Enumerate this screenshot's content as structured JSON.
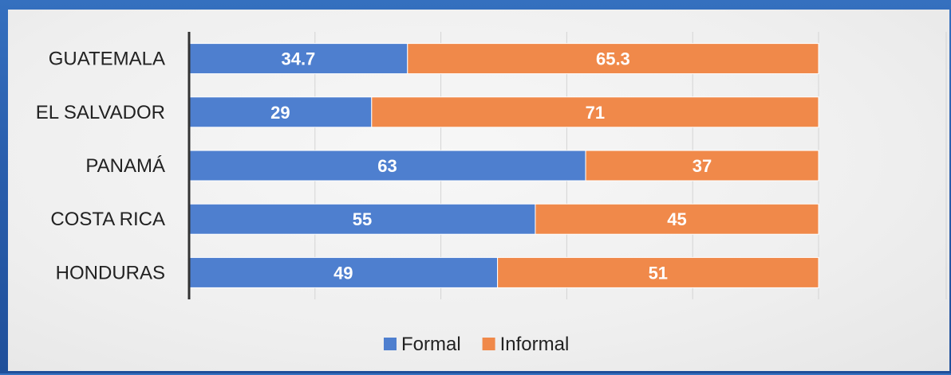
{
  "chart_data": {
    "type": "bar",
    "orientation": "horizontal",
    "stacked": true,
    "categories": [
      "GUATEMALA",
      "EL SALVADOR",
      "PANAMÁ",
      "COSTA RICA",
      "HONDURAS"
    ],
    "series": [
      {
        "name": "Formal",
        "values": [
          34.7,
          29,
          63,
          55,
          49
        ],
        "labels": [
          "34.7",
          "29",
          "63",
          "55",
          "49"
        ],
        "color": "#4e7fcf"
      },
      {
        "name": "Informal",
        "values": [
          65.3,
          71,
          37,
          45,
          51
        ],
        "labels": [
          "65.3",
          "71",
          "37",
          "45",
          "51"
        ],
        "color": "#f0894a"
      }
    ],
    "xlim": [
      0,
      100
    ],
    "grid": "vertical",
    "legend": "bottom"
  },
  "colors": {
    "background": "#2a5fae",
    "panel": "#f2f2f2",
    "gridline": "#d4d4d4",
    "axis": "#333333"
  }
}
